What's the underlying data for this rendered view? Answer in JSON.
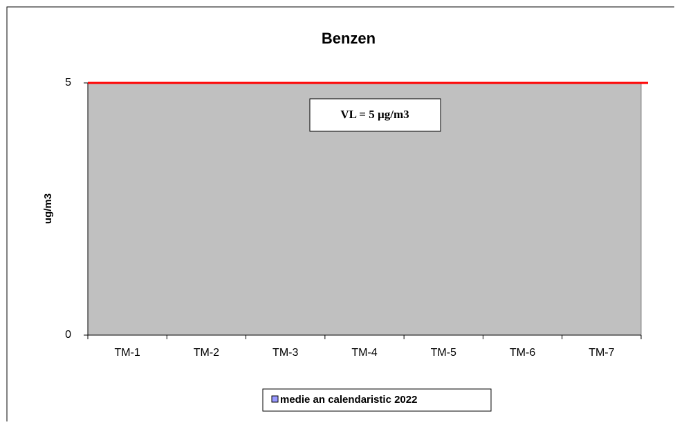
{
  "chart_data": {
    "type": "bar",
    "title": "Benzen",
    "y_label": "ug/m3",
    "categories": [
      "TM-1",
      "TM-2",
      "TM-3",
      "TM-4",
      "TM-5",
      "TM-6",
      "TM-7"
    ],
    "series": [
      {
        "name": "medie an calendaristic 2022",
        "color": "#9999ff",
        "values": [
          null,
          null,
          null,
          null,
          null,
          null,
          null
        ]
      }
    ],
    "ylim": [
      0,
      5
    ],
    "yticks": [
      0,
      5
    ],
    "reference_line": {
      "value": 5,
      "color": "#ff0000",
      "label": "VL = 5 µg/m3"
    },
    "plot_background": "#c0c0c0",
    "legend": "bottom"
  }
}
